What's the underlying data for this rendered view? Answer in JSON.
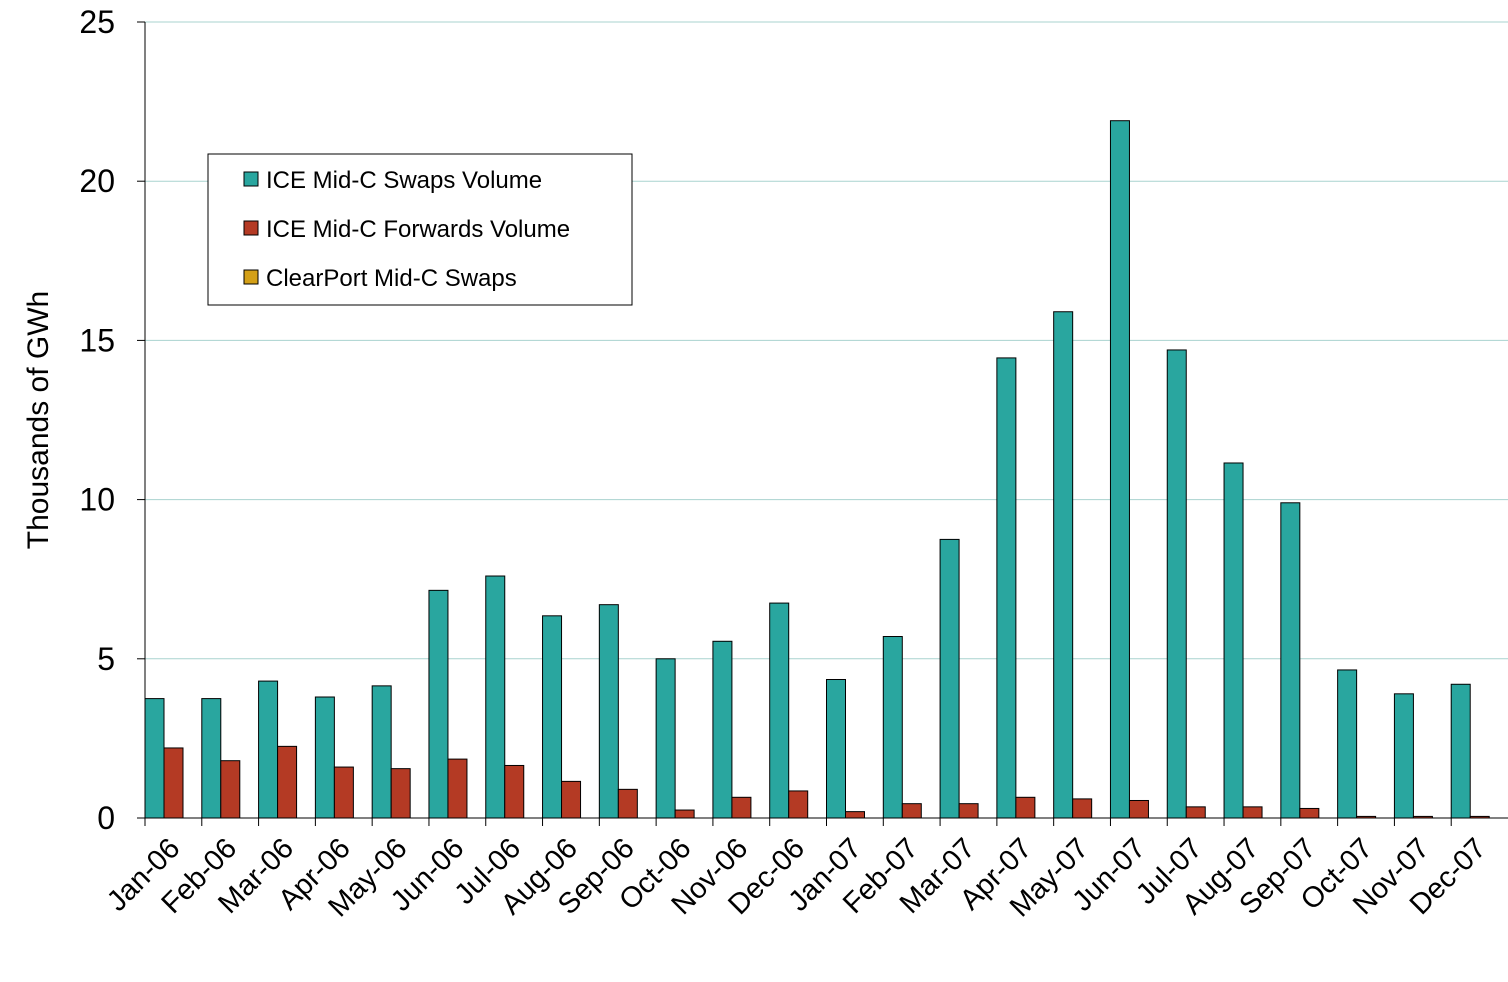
{
  "chart_data": {
    "type": "bar",
    "y_label": "Thousands of GWh",
    "categories": [
      "Jan-06",
      "Feb-06",
      "Mar-06",
      "Apr-06",
      "May-06",
      "Jun-06",
      "Jul-06",
      "Aug-06",
      "Sep-06",
      "Oct-06",
      "Nov-06",
      "Dec-06",
      "Jan-07",
      "Feb-07",
      "Mar-07",
      "Apr-07",
      "May-07",
      "Jun-07",
      "Jul-07",
      "Aug-07",
      "Sep-07",
      "Oct-07",
      "Nov-07",
      "Dec-07"
    ],
    "series": [
      {
        "name": "ICE Mid-C Swaps Volume",
        "color": "#29a69f",
        "values": [
          3.75,
          3.75,
          4.3,
          3.8,
          4.15,
          7.15,
          7.6,
          6.35,
          6.7,
          5.0,
          5.55,
          6.75,
          4.35,
          5.7,
          8.75,
          14.45,
          15.9,
          21.9,
          14.7,
          11.15,
          9.9,
          4.65,
          3.9,
          4.2
        ]
      },
      {
        "name": "ICE Mid-C Forwards Volume",
        "color": "#b43a24",
        "values": [
          2.2,
          1.8,
          2.25,
          1.6,
          1.55,
          1.85,
          1.65,
          1.15,
          0.9,
          0.25,
          0.65,
          0.85,
          0.2,
          0.45,
          0.45,
          0.65,
          0.6,
          0.55,
          0.35,
          0.35,
          0.3,
          0.05,
          0.05,
          0.05
        ]
      },
      {
        "name": "ClearPort Mid-C Swaps",
        "color": "#d4a017",
        "values": [
          0,
          0,
          0,
          0,
          0,
          0,
          0,
          0,
          0,
          0,
          0,
          0,
          0,
          0,
          0,
          0,
          0,
          0,
          0,
          0,
          0,
          0,
          0,
          0
        ]
      }
    ],
    "ylim": [
      0,
      25
    ],
    "yticks": [
      0,
      5,
      10,
      15,
      20,
      25
    ],
    "grid": true,
    "legend": "upper left"
  }
}
